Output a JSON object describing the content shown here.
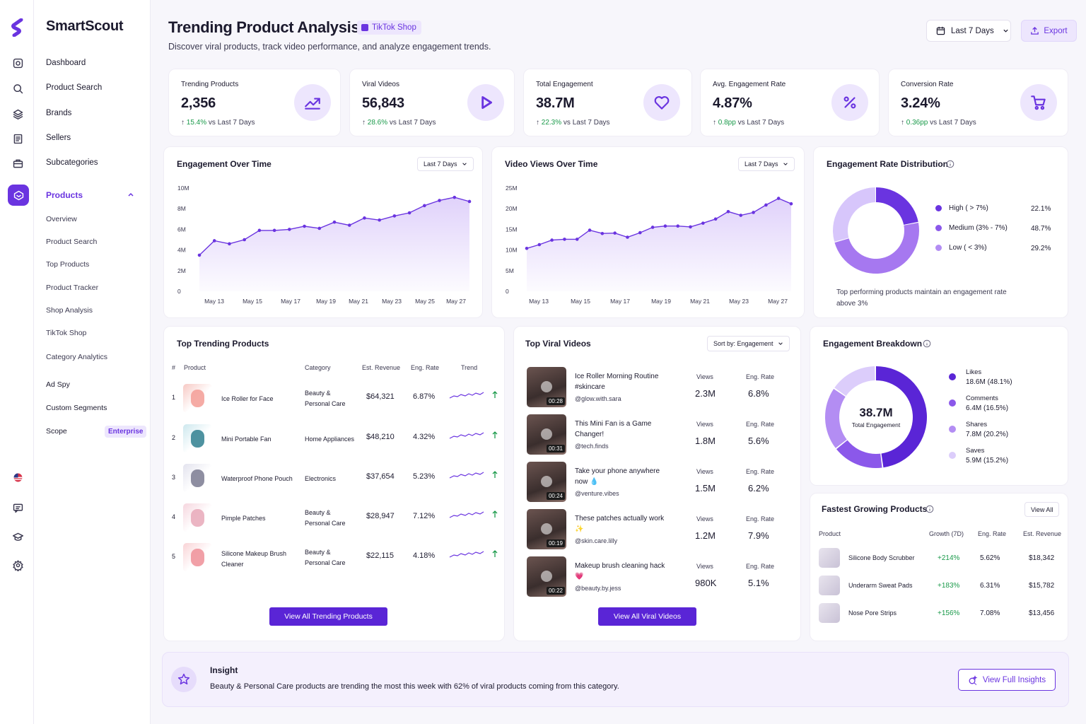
{
  "brand": {
    "name": "SmartScout"
  },
  "sidebar": {
    "main": [
      "Dashboard",
      "Product Search",
      "Brands",
      "Sellers",
      "Subcategories"
    ],
    "active": "Products",
    "sub": [
      "Overview",
      "Product Search",
      "Top Products",
      "Product Tracker",
      "Shop Analysis",
      "TikTok Shop",
      "Category Analytics"
    ],
    "extra": [
      "Ad Spy",
      "Custom Segments",
      "Scope"
    ],
    "badge": "Enterprise"
  },
  "header": {
    "title": "Trending Product Analysis",
    "badge": "TikTok Shop",
    "subtitle": "Discover viral products, track video performance, and analyze engagement trends.",
    "range": "Last 7 Days",
    "export": "Export"
  },
  "kpis": [
    {
      "label": "Trending Products",
      "value": "2,356",
      "change": "15.4%",
      "suffix": "vs Last 7 Days",
      "icon": "trend-up-icon"
    },
    {
      "label": "Viral Videos",
      "value": "56,843",
      "change": "28.6%",
      "suffix": "vs Last 7 Days",
      "icon": "play-icon"
    },
    {
      "label": "Total Engagement",
      "value": "38.7M",
      "change": "22.3%",
      "suffix": "vs Last 7 Days",
      "icon": "heart-icon"
    },
    {
      "label": "Avg. Engagement Rate",
      "value": "4.87%",
      "change": "0.8pp",
      "suffix": "vs Last 7 Days",
      "icon": "percent-icon"
    },
    {
      "label": "Conversion Rate",
      "value": "3.24%",
      "change": "0.36pp",
      "suffix": "vs Last 7 Days",
      "icon": "cart-icon"
    }
  ],
  "chart_data": [
    {
      "type": "area",
      "title": "Engagement Over Time",
      "range": "Last 7 Days",
      "x_ticks": [
        "May 13",
        "May 15",
        "May 17",
        "May 19",
        "May 21",
        "May 23",
        "May 25",
        "May 27"
      ],
      "y_ticks": [
        "10M",
        "8M",
        "6M",
        "4M",
        "2M",
        "0"
      ],
      "ylim": [
        0,
        10
      ],
      "values": [
        3.5,
        4.9,
        4.6,
        5.0,
        5.9,
        5.9,
        6.0,
        6.3,
        6.1,
        6.7,
        6.4,
        7.1,
        6.9,
        7.3,
        7.6,
        8.3,
        8.8,
        9.1,
        8.7
      ]
    },
    {
      "type": "area",
      "title": "Video Views Over Time",
      "range": "Last 7 Days",
      "x_ticks": [
        "May 13",
        "May 15",
        "May 17",
        "May 19",
        "May 21",
        "May 23",
        "May 27"
      ],
      "y_ticks": [
        "25M",
        "20M",
        "15M",
        "10M",
        "5M",
        "0"
      ],
      "ylim": [
        0,
        25
      ],
      "values": [
        10.4,
        11.3,
        12.4,
        12.6,
        12.6,
        14.8,
        14.0,
        14.1,
        13.1,
        14.2,
        15.5,
        15.8,
        15.8,
        15.6,
        16.5,
        17.5,
        19.3,
        18.4,
        19.1,
        20.9,
        22.5,
        21.2
      ]
    },
    {
      "type": "pie",
      "title": "Engagement Rate Distribution",
      "slices": [
        {
          "name": "High ( > 7%)",
          "value": 22.1,
          "label": "22.1%",
          "color": "#6a34e0"
        },
        {
          "name": "Medium (3% - 7%)",
          "value": 48.7,
          "label": "48.7%",
          "color": "#a678f0"
        },
        {
          "name": "Low ( < 3%)",
          "value": 29.2,
          "label": "29.2%",
          "color": "#d7c6fb"
        }
      ],
      "note": "Top performing products maintain an engagement rate above 3%"
    },
    {
      "type": "pie",
      "title": "Engagement Breakdown",
      "center_value": "38.7M",
      "center_label": "Total Engagement",
      "slices": [
        {
          "name": "Likes",
          "value": 48.1,
          "label": "18.6M (48.1%)",
          "color": "#5a25d6"
        },
        {
          "name": "Comments",
          "value": 16.5,
          "label": "6.4M (16.5%)",
          "color": "#8b58ea"
        },
        {
          "name": "Shares",
          "value": 20.2,
          "label": "7.8M (20.2%)",
          "color": "#b38df3"
        },
        {
          "name": "Saves",
          "value": 15.2,
          "label": "5.9M (15.2%)",
          "color": "#dccdfb"
        }
      ]
    }
  ],
  "top_products": {
    "title": "Top Trending Products",
    "columns": [
      "#",
      "Product",
      "Category",
      "Est. Revenue",
      "Eng. Rate",
      "Trend"
    ],
    "rows": [
      {
        "rank": "1",
        "name": "Ice Roller for Face",
        "cat1": "Beauty &",
        "cat2": "Personal Care",
        "revenue": "$64,321",
        "rate": "6.87%"
      },
      {
        "rank": "2",
        "name": "Mini Portable Fan",
        "cat1": "Home Appliances",
        "cat2": "",
        "revenue": "$48,210",
        "rate": "4.32%"
      },
      {
        "rank": "3",
        "name": "Waterproof Phone Pouch",
        "cat1": "Electronics",
        "cat2": "",
        "revenue": "$37,654",
        "rate": "5.23%"
      },
      {
        "rank": "4",
        "name": "Pimple Patches",
        "cat1": "Beauty &",
        "cat2": "Personal Care",
        "revenue": "$28,947",
        "rate": "7.12%"
      },
      {
        "rank": "5",
        "name": "Silicone Makeup Brush",
        "name2": "Cleaner",
        "cat1": "Beauty &",
        "cat2": "Personal Care",
        "revenue": "$22,115",
        "rate": "4.18%"
      }
    ],
    "button": "View All Trending Products"
  },
  "top_videos": {
    "title": "Top Viral Videos",
    "sort": "Sort by: Engagement",
    "views_label": "Views",
    "rate_label": "Eng. Rate",
    "rows": [
      {
        "t1": "Ice Roller Morning Routine",
        "t2": "#skincare",
        "handle": "@glow.with.sara",
        "dur": "00:28",
        "views": "2.3M",
        "rate": "6.8%"
      },
      {
        "t1": "This Mini Fan is a Game",
        "t2": "Changer!",
        "handle": "@tech.finds",
        "dur": "00:31",
        "views": "1.8M",
        "rate": "5.6%"
      },
      {
        "t1": "Take your phone anywhere",
        "t2": "now 💧",
        "handle": "@venture.vibes",
        "dur": "00:24",
        "views": "1.5M",
        "rate": "6.2%"
      },
      {
        "t1": "These patches actually work",
        "t2": "✨",
        "handle": "@skin.care.lilly",
        "dur": "00:19",
        "views": "1.2M",
        "rate": "7.9%"
      },
      {
        "t1": "Makeup brush cleaning hack",
        "t2": "💗",
        "handle": "@beauty.by.jess",
        "dur": "00:22",
        "views": "980K",
        "rate": "5.1%"
      }
    ],
    "button": "View All Viral Videos"
  },
  "fastest": {
    "title": "Fastest Growing Products",
    "view_all": "View All",
    "columns": [
      "Product",
      "Growth (7D)",
      "Eng. Rate",
      "Est. Revenue"
    ],
    "rows": [
      {
        "name": "Silicone Body Scrubber",
        "growth": "+214%",
        "rate": "5.62%",
        "revenue": "$18,342"
      },
      {
        "name": "Underarm Sweat Pads",
        "growth": "+183%",
        "rate": "6.31%",
        "revenue": "$15,782"
      },
      {
        "name": "Nose Pore Strips",
        "growth": "+156%",
        "rate": "7.08%",
        "revenue": "$13,456"
      }
    ]
  },
  "insight": {
    "title": "Insight",
    "text": "Beauty & Personal Care products are trending the most this week with 62% of viral products coming from this category.",
    "button": "View Full Insights"
  }
}
